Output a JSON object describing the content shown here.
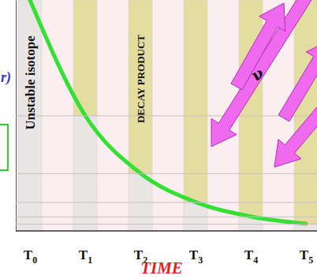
{
  "chart_data": {
    "type": "bar",
    "stacked": true,
    "xlabel": "TIME",
    "categories": [
      "T0",
      "T1",
      "T2",
      "T3",
      "T4",
      "T5"
    ],
    "series": [
      {
        "name": "Unstable isotope",
        "color": "#e9e5e5",
        "values": [
          1,
          0.5,
          0.25,
          0.125,
          0.0625,
          0.03125
        ]
      },
      {
        "name": "DECAY PRODUCT",
        "color": "#e4dda0",
        "values": [
          0,
          0.5,
          0.75,
          0.875,
          0.9375,
          0.96875
        ]
      },
      {
        "type": "line",
        "color": "#33e033",
        "values": [
          1,
          0.5,
          0.25,
          0.125,
          0.0625,
          0.03125
        ]
      }
    ],
    "ylim": [
      0,
      1
    ],
    "yticks": [
      0.03125,
      0.0625,
      0.125,
      0.25,
      0.5
    ],
    "grid": true,
    "tick_labels": "x",
    "annotations": [
      "r)",
      "ν"
    ]
  }
}
